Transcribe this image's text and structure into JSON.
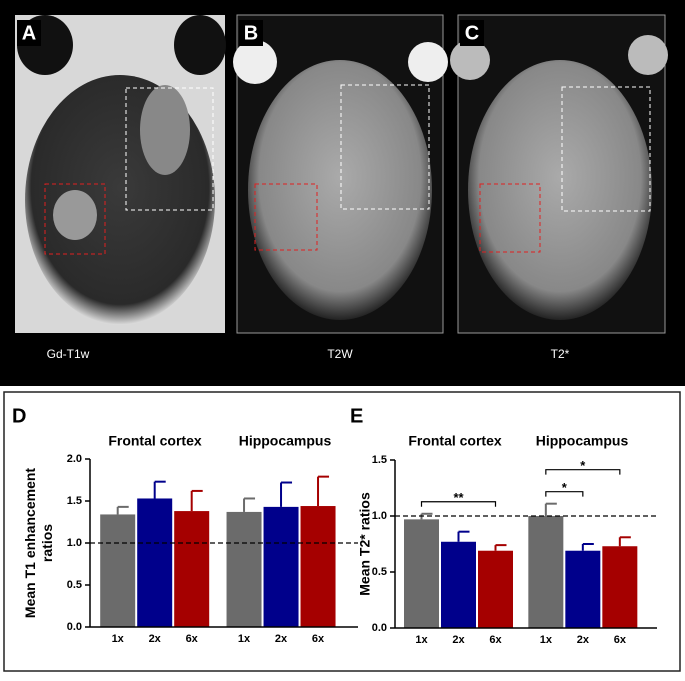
{
  "panels": [
    {
      "label": "A",
      "caption": "Gd-T1w"
    },
    {
      "label": "B",
      "caption": "T2W"
    },
    {
      "label": "C",
      "caption": "T2*"
    }
  ],
  "chart_data": [
    {
      "type": "bar",
      "panel_label": "D",
      "y_label": [
        "Mean T1 enhancement",
        "ratios"
      ],
      "groups": [
        "Frontal cortex",
        "Hippocampus"
      ],
      "categories": [
        "1x",
        "2x",
        "6x",
        "1x",
        "2x",
        "6x"
      ],
      "values": [
        1.34,
        1.53,
        1.38,
        1.37,
        1.43,
        1.44
      ],
      "errors": [
        0.09,
        0.2,
        0.24,
        0.16,
        0.29,
        0.35
      ],
      "colors": [
        "#6b6b6b",
        "#00008b",
        "#a50000",
        "#6b6b6b",
        "#00008b",
        "#a50000"
      ],
      "reference_line": 1,
      "ylim": [
        0,
        2
      ],
      "yticks": [
        {
          "value": 0,
          "label": "0.0"
        },
        0.5,
        {
          "value": 1,
          "label": "1.0"
        },
        1.5,
        {
          "value": 2,
          "label": "2.0"
        }
      ],
      "annotations": []
    },
    {
      "type": "bar",
      "panel_label": "E",
      "y_label": [
        "Mean T2* ratios"
      ],
      "groups": [
        "Frontal cortex",
        "Hippocampus"
      ],
      "categories": [
        "1x",
        "2x",
        "6x",
        "1x",
        "2x",
        "6x"
      ],
      "values": [
        0.97,
        0.77,
        0.69,
        1.0,
        0.69,
        0.73
      ],
      "errors": [
        0.05,
        0.09,
        0.05,
        0.11,
        0.06,
        0.08
      ],
      "colors": [
        "#6b6b6b",
        "#00008b",
        "#a50000",
        "#6b6b6b",
        "#00008b",
        "#a50000"
      ],
      "reference_line": 1,
      "ylim": [
        0,
        1.5
      ],
      "yticks": [
        {
          "value": 0,
          "label": "0.0"
        },
        0.5,
        {
          "value": 1,
          "label": "1.0"
        },
        {
          "value": 1.5,
          "label": "1.5"
        }
      ],
      "annotations": [
        {
          "label": "**",
          "from": 0,
          "to": 2
        },
        {
          "label": "*",
          "from": 3,
          "to": 4
        },
        {
          "label": "*",
          "from": 3,
          "to": 5
        }
      ]
    }
  ]
}
